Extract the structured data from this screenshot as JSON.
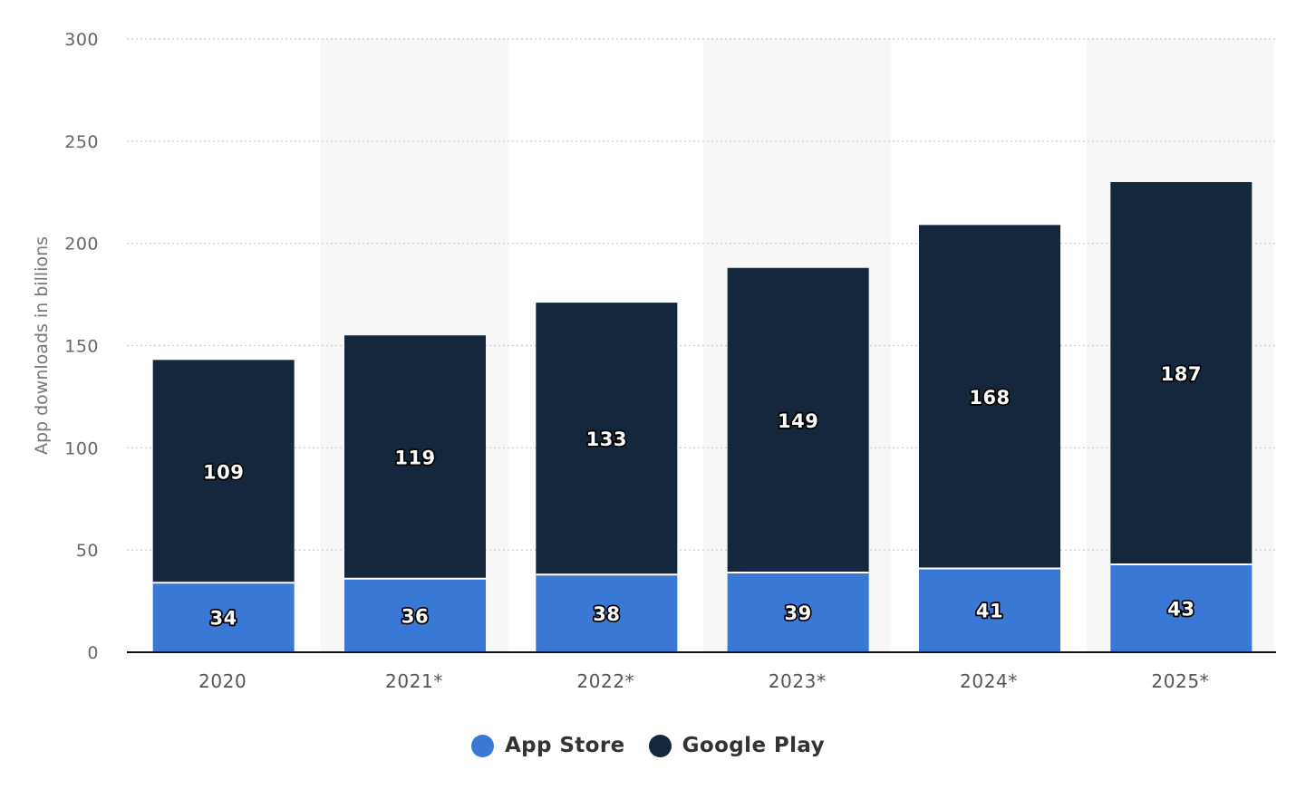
{
  "chart_data": {
    "type": "bar",
    "stacked": true,
    "categories": [
      "2020",
      "2021*",
      "2022*",
      "2023*",
      "2024*",
      "2025*"
    ],
    "series": [
      {
        "name": "App Store",
        "values": [
          34,
          36,
          38,
          39,
          41,
          43
        ],
        "color": "#3a78d6"
      },
      {
        "name": "Google Play",
        "values": [
          109,
          119,
          133,
          149,
          168,
          187
        ],
        "color": "#15273d"
      }
    ],
    "ylabel": "App downloads in billions",
    "ylim": [
      0,
      300
    ],
    "yticks": [
      "0",
      "50",
      "100",
      "150",
      "200",
      "250",
      "300"
    ],
    "grid": true,
    "legend_position": "bottom",
    "alternating_band_color": "#f7f7f7"
  },
  "legend": [
    {
      "label": "App Store",
      "color": "#3a78d6"
    },
    {
      "label": "Google Play",
      "color": "#15273d"
    }
  ]
}
